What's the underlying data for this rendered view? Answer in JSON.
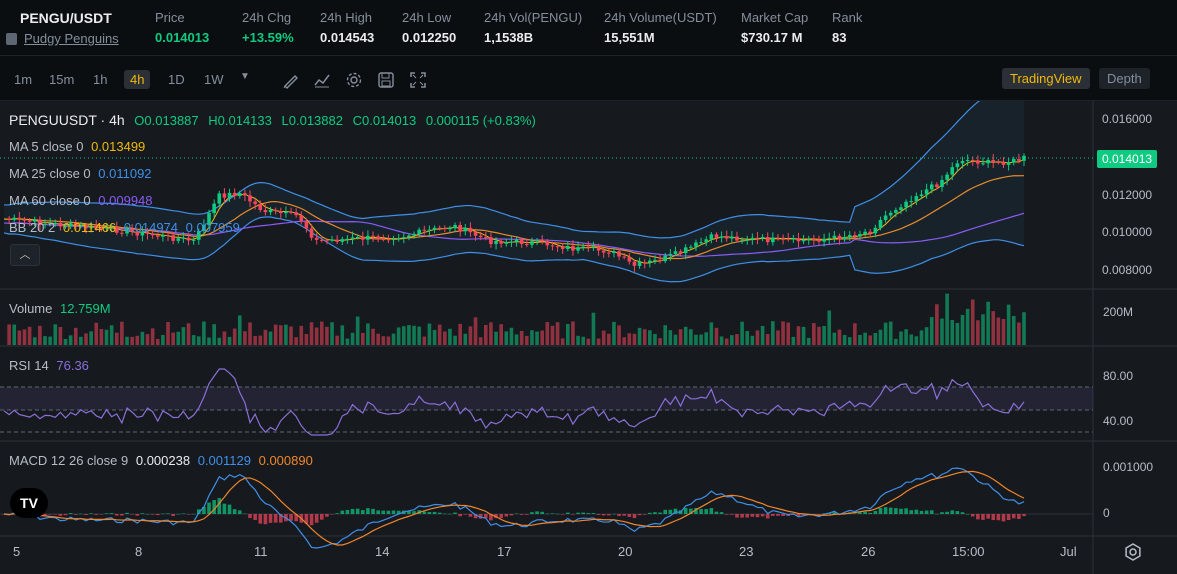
{
  "header": {
    "symbol": "PENGU/USDT",
    "name": "Pudgy Penguins",
    "stats": [
      {
        "label": "Price",
        "value": "0.014013",
        "color": "green"
      },
      {
        "label": "24h Chg",
        "value": "+13.59%",
        "color": "green"
      },
      {
        "label": "24h High",
        "value": "0.014543",
        "color": ""
      },
      {
        "label": "24h Low",
        "value": "0.012250",
        "color": ""
      },
      {
        "label": "24h Vol(PENGU)",
        "value": "1,1538B",
        "color": ""
      },
      {
        "label": "24h Volume(USDT)",
        "value": "15,551M",
        "color": ""
      },
      {
        "label": "Market Cap",
        "value": "$730.17 M",
        "color": ""
      },
      {
        "label": "Rank",
        "value": "83",
        "color": ""
      }
    ]
  },
  "toolbar": {
    "timeframes": [
      "1m",
      "15m",
      "1h",
      "4h",
      "1D",
      "1W"
    ],
    "active_timeframe": "4h",
    "tools": [
      "draw-icon",
      "indicator-icon",
      "settings-icon",
      "save-icon",
      "fullscreen-icon"
    ],
    "views": [
      "TradingView",
      "Depth"
    ],
    "active_view": "TradingView"
  },
  "legend": {
    "title": "PENGUUSDT · 4h",
    "ohlc": {
      "o": "O0.013887",
      "h": "H0.014133",
      "l": "L0.013882",
      "c": "C0.014013",
      "chg": "0.000115 (+0.83%)"
    },
    "ma5_label": "MA 5 close 0",
    "ma5_value": "0.013499",
    "ma25_label": "MA 25 close 0",
    "ma25_value": "0.011092",
    "ma60_label": "MA 60 close 0",
    "ma60_value": "0.009948",
    "bb_label": "BB 20 2",
    "bb_values": [
      "0.011466",
      "0.014974",
      "0.007959"
    ],
    "volume_label": "Volume",
    "volume_value": "12.759M",
    "rsi_label": "RSI 14",
    "rsi_value": "76.36",
    "macd_label": "MACD 12 26 close 9",
    "macd_values": [
      "0.000238",
      "0.001129",
      "0.000890"
    ]
  },
  "price_axis": [
    "0.016000",
    "0.012000",
    "0.010000",
    "0.008000"
  ],
  "current_price": "0.014013",
  "volume_axis": "200M",
  "rsi_axis": [
    "80.00",
    "40.00"
  ],
  "macd_axis": [
    "0.001000",
    "0"
  ],
  "x_axis": [
    "5",
    "8",
    "11",
    "14",
    "17",
    "20",
    "23",
    "26",
    "15:00",
    "Jul"
  ],
  "colors": {
    "up": "#0ecb81",
    "down": "#f6465d",
    "ma5": "#f0b90b",
    "ma25": "#e88b2b",
    "ma60": "#8b5cf6",
    "bb": "#3f8fe8",
    "rsi": "#8a6fd9",
    "macd": "#3f8fe8",
    "signal": "#f0852b"
  },
  "brand_logo": "TV"
}
